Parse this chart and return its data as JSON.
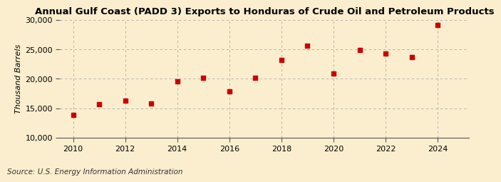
{
  "title": "Annual Gulf Coast (PADD 3) Exports to Honduras of Crude Oil and Petroleum Products",
  "ylabel": "Thousand Barrels",
  "source": "Source: U.S. Energy Information Administration",
  "years": [
    2010,
    2011,
    2012,
    2013,
    2014,
    2015,
    2016,
    2017,
    2018,
    2019,
    2020,
    2021,
    2022,
    2023,
    2024
  ],
  "values": [
    13800,
    15700,
    16300,
    15800,
    19500,
    20100,
    17900,
    20200,
    23200,
    25600,
    20900,
    24900,
    24300,
    23700,
    29100
  ],
  "marker_color": "#cc0000",
  "marker": "s",
  "marker_size": 18,
  "background_color": "#faeece",
  "grid_color": "#aaaaaa",
  "ylim": [
    10000,
    30000
  ],
  "xlim": [
    2009.5,
    2025.2
  ],
  "yticks": [
    10000,
    15000,
    20000,
    25000,
    30000
  ],
  "xticks": [
    2010,
    2012,
    2014,
    2016,
    2018,
    2020,
    2022,
    2024
  ],
  "title_fontsize": 9.5,
  "label_fontsize": 8,
  "tick_fontsize": 8,
  "source_fontsize": 7.5
}
